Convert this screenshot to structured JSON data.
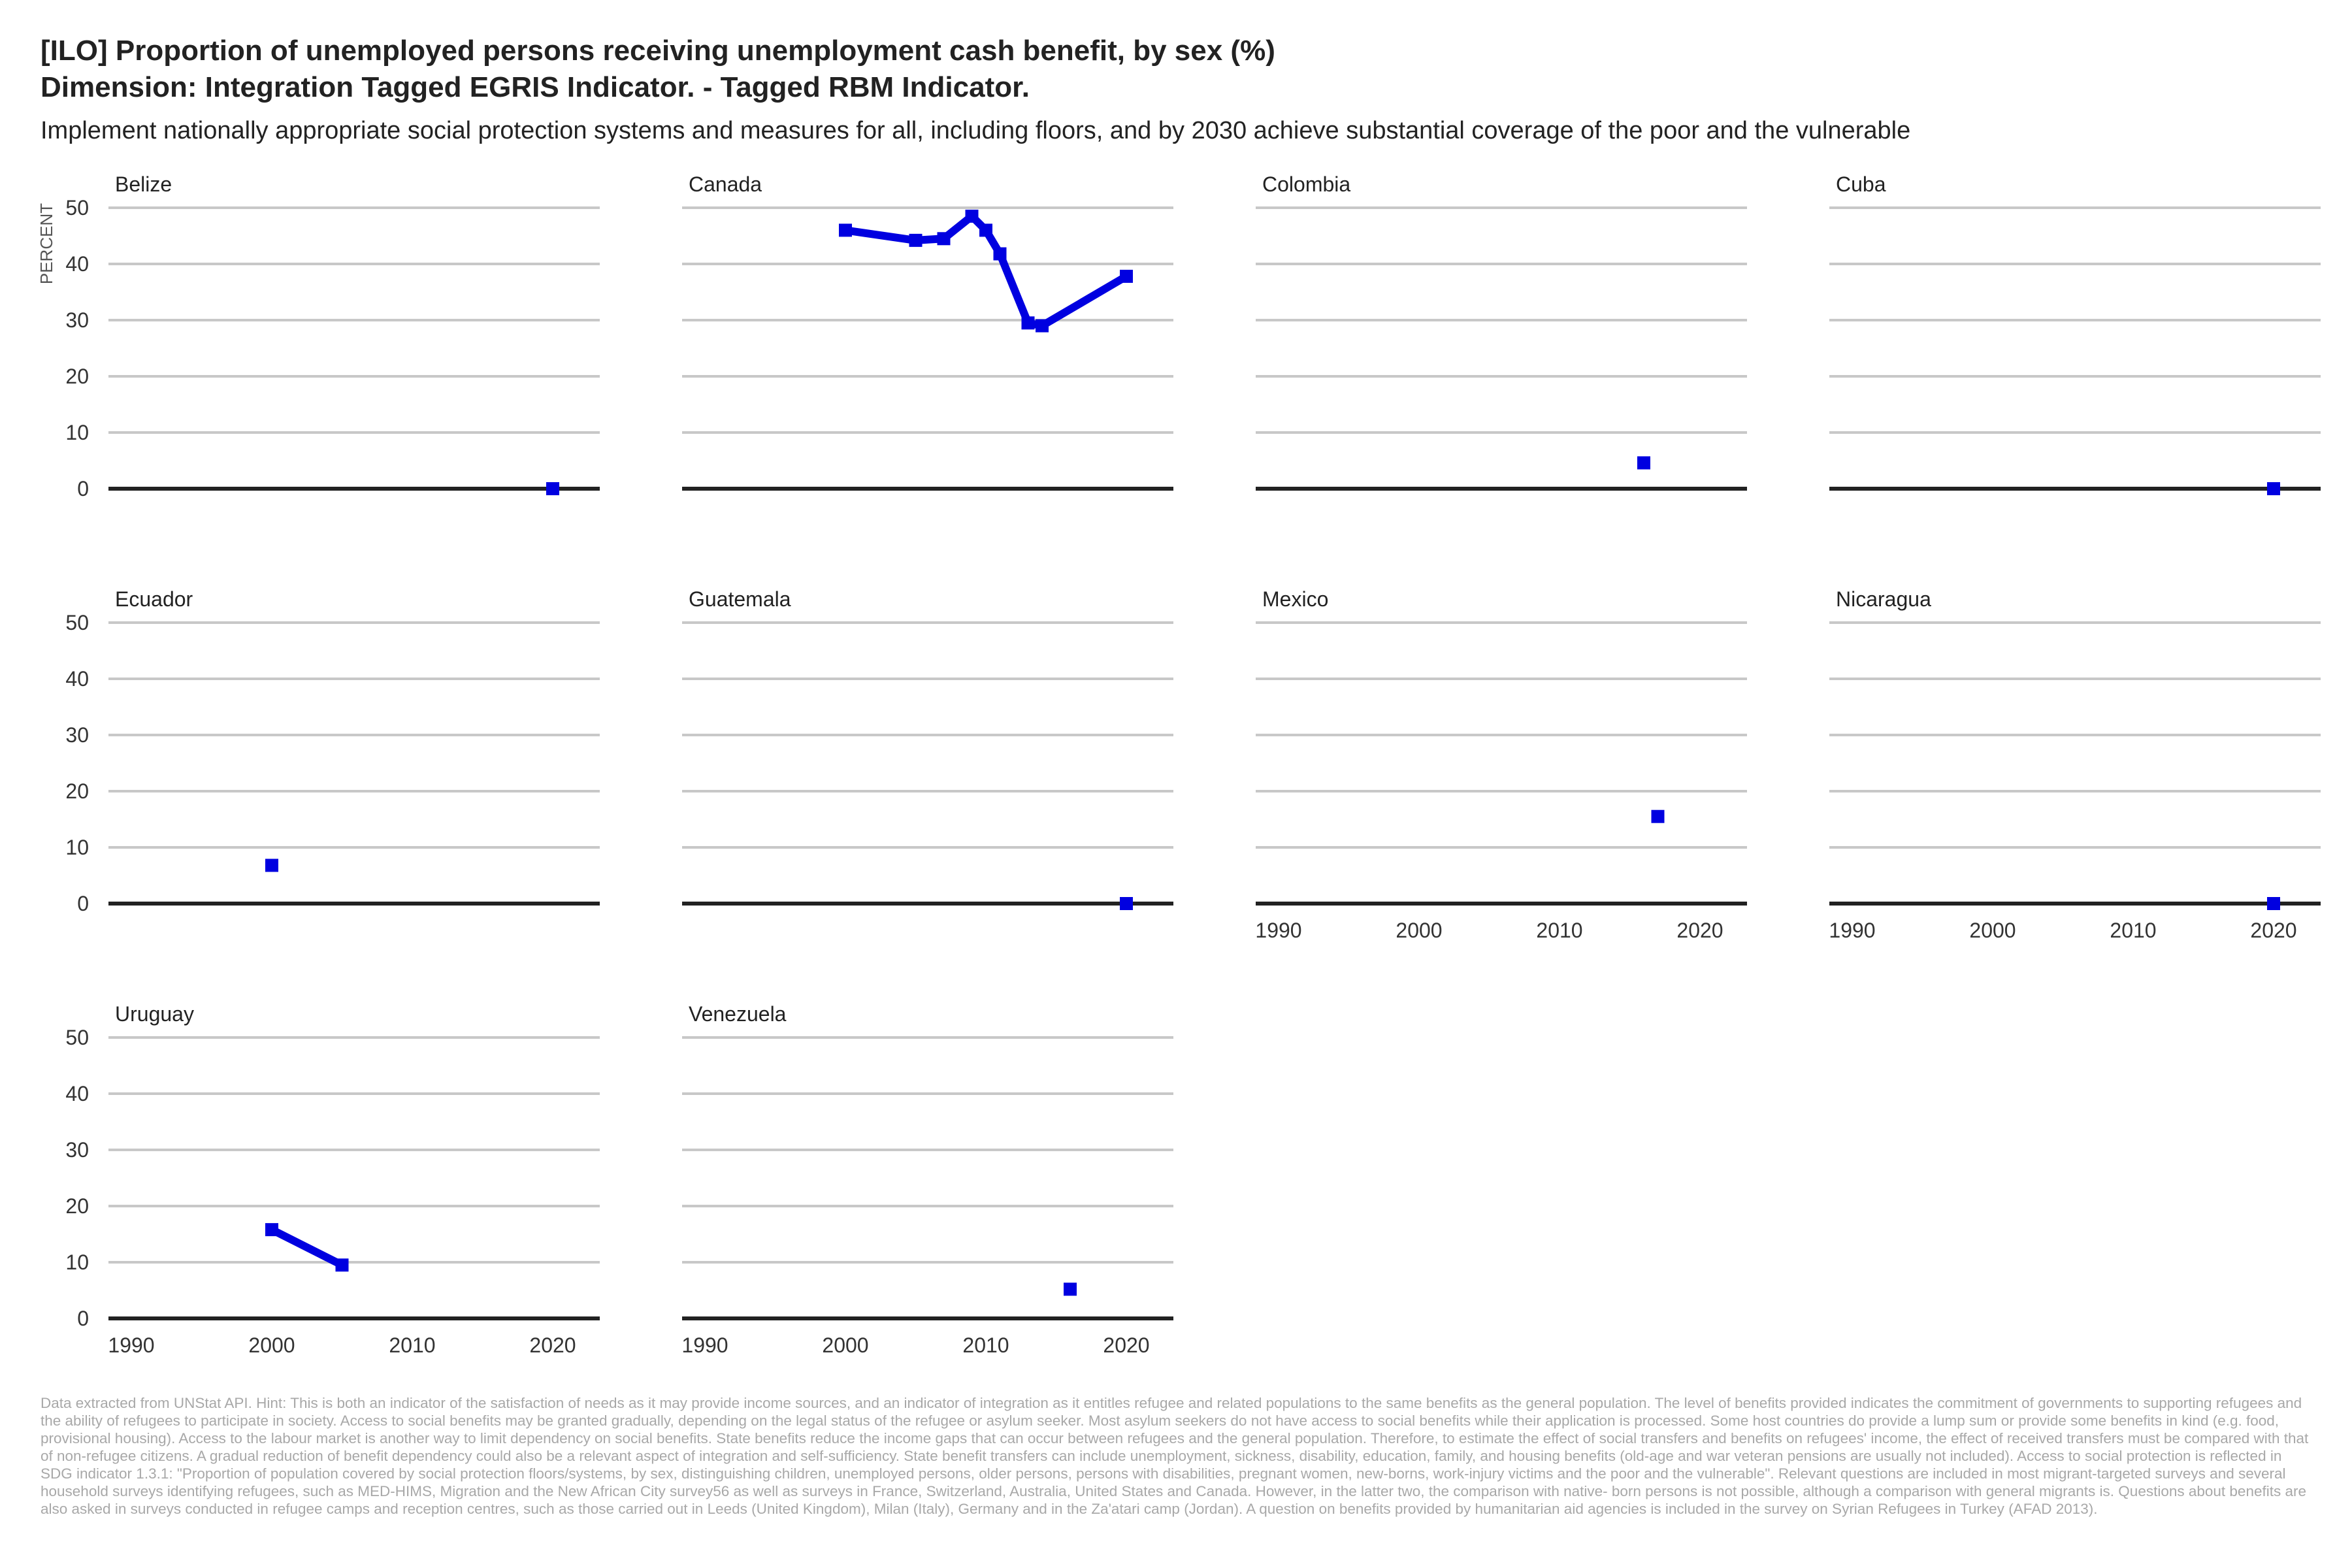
{
  "header": {
    "title_line1": "[ILO] Proportion of unemployed persons receiving unemployment cash benefit, by sex (%)",
    "title_line2": "Dimension: Integration Tagged EGRIS Indicator. - Tagged RBM  Indicator.",
    "subtitle": "Implement nationally appropriate social protection systems and measures for all, including floors, and by 2030 achieve substantial coverage of the poor and the vulnerable"
  },
  "colors": {
    "series": "#0000e0",
    "grid": "#c8c8c8",
    "axis": "#222222"
  },
  "chart_data": {
    "type": "line",
    "facet": "country",
    "ylabel": "PERCENT",
    "ylim": [
      0,
      50
    ],
    "yticks": [
      0,
      10,
      20,
      30,
      40,
      50
    ],
    "xlim": [
      1990,
      2020
    ],
    "xticks": [
      1990,
      2000,
      2010,
      2020
    ],
    "grid": true,
    "panels": [
      {
        "name": "Belize",
        "x": [
          2020
        ],
        "y": [
          0
        ]
      },
      {
        "name": "Canada",
        "x": [
          2000,
          2005,
          2007,
          2009,
          2010,
          2011,
          2013,
          2014,
          2020
        ],
        "y": [
          46,
          44.2,
          44.5,
          48.5,
          46,
          41.8,
          29.5,
          29,
          37.8
        ]
      },
      {
        "name": "Colombia",
        "x": [
          2016
        ],
        "y": [
          4.6
        ]
      },
      {
        "name": "Cuba",
        "x": [
          2020
        ],
        "y": [
          0
        ]
      },
      {
        "name": "Ecuador",
        "x": [
          2000
        ],
        "y": [
          6.8
        ]
      },
      {
        "name": "Guatemala",
        "x": [
          2020
        ],
        "y": [
          0
        ]
      },
      {
        "name": "Mexico",
        "x": [
          2017
        ],
        "y": [
          15.5
        ]
      },
      {
        "name": "Nicaragua",
        "x": [
          2020
        ],
        "y": [
          0
        ]
      },
      {
        "name": "Uruguay",
        "x": [
          2000,
          2005
        ],
        "y": [
          15.8,
          9.5
        ]
      },
      {
        "name": "Venezuela",
        "x": [
          2016
        ],
        "y": [
          5.2
        ]
      }
    ]
  },
  "footer": {
    "caption": "Data extracted from UNStat API. Hint: This is both an indicator of the satisfaction of needs as it may provide income sources, and an indicator of integration as it entitles refugee and related populations to the same benefits as the general population. The level of benefits provided indicates the commitment of governments to supporting refugees and the ability of refugees to participate in society. Access to social benefits may be granted gradually, depending on the legal status of the refugee or asylum seeker. Most asylum seekers do not have access to social benefits while their application is processed. Some host countries do provide a lump sum or provide some benefits in kind (e.g. food, provisional housing). Access to the labour market is another way to limit dependency on social benefits. State benefits reduce the income gaps that can occur between refugees and the general population. Therefore, to estimate the effect of social transfers and benefits on refugees' income, the effect of received transfers must be compared with that of non-refugee citizens. A gradual reduction of benefit dependency could also be a relevant aspect of integration and self-sufficiency. State benefit transfers can include unemployment, sickness, disability, education, family, and housing benefits (old-age and war veteran pensions are usually not included). Access to social protection is reflected in SDG indicator 1.3.1: \"Proportion of population covered by social protection floors/systems, by sex, distinguishing children, unemployed persons, older persons, persons with disabilities, pregnant women, new-borns, work-injury victims and the poor and the vulnerable\". Relevant questions are included in most migrant-targeted surveys and several household surveys identifying refugees, such as MED-HIMS, Migration and the New African City survey56 as well as surveys in France, Switzerland, Australia, United States and Canada. However, in the latter two, the comparison with native- born persons is not possible, although a comparison with general migrants is. Questions about benefits are also asked in surveys conducted in refugee camps and reception centres, such as those carried out in Leeds (United Kingdom), Milan (Italy), Germany and in the Za'atari camp (Jordan). A question on benefits provided by humanitarian aid agencies is included in the survey on Syrian Refugees in Turkey (AFAD 2013)."
  }
}
